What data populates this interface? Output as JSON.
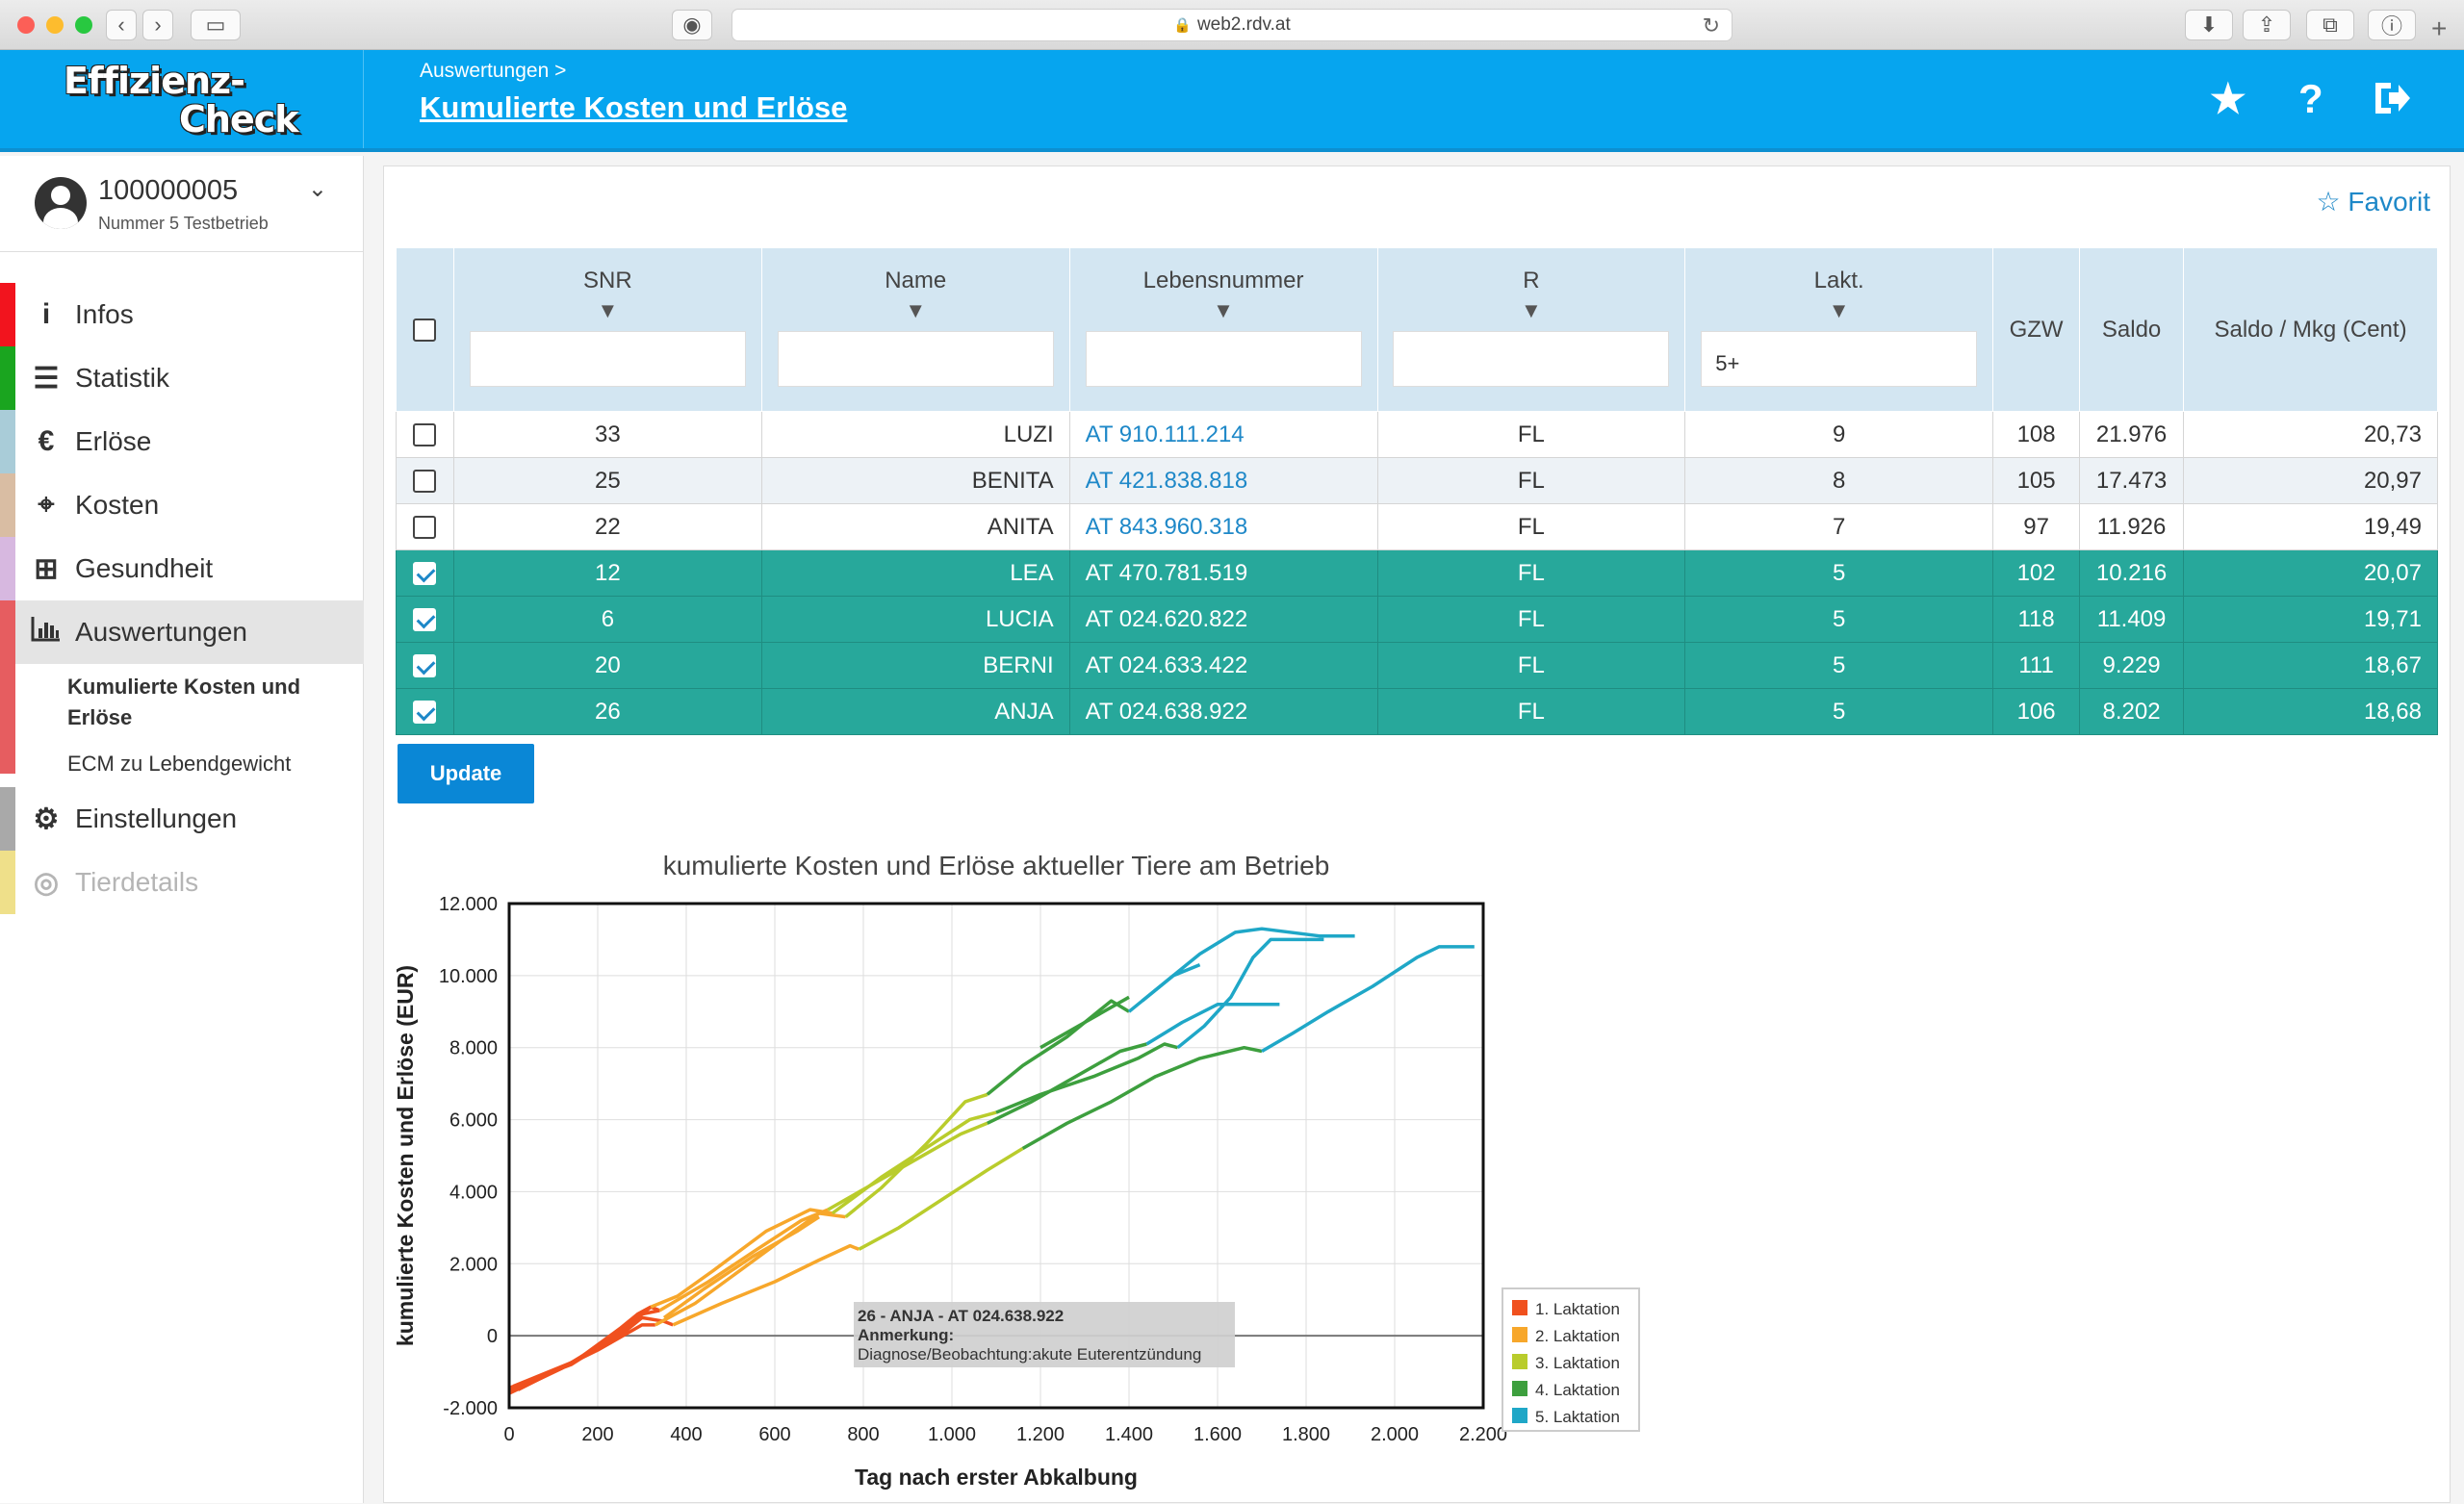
{
  "browser": {
    "url": "web2.rdv.at"
  },
  "header": {
    "logo_line1": "Effizienz-",
    "logo_line2": "Check",
    "breadcrumb": "Auswertungen >",
    "title": "Kumulierte Kosten und Erlöse",
    "icons": [
      "star-icon",
      "help-icon",
      "logout-icon"
    ]
  },
  "user": {
    "id": "100000005",
    "name": "Nummer 5 Testbetrieb"
  },
  "sidebar": {
    "items": [
      {
        "label": "Infos",
        "icon": "info-icon",
        "color": "#f2141e"
      },
      {
        "label": "Statistik",
        "icon": "list-icon",
        "color": "#1aa51f"
      },
      {
        "label": "Erlöse",
        "icon": "euro-icon",
        "color": "#a9ccd8"
      },
      {
        "label": "Kosten",
        "icon": "crosshair-icon",
        "color": "#d9bda3"
      },
      {
        "label": "Gesundheit",
        "icon": "plus-icon",
        "color": "#d7b8e0"
      },
      {
        "label": "Auswertungen",
        "icon": "bar-chart-icon",
        "color": "#e65d60"
      },
      {
        "label": "Einstellungen",
        "icon": "gears-icon",
        "color": "#a9a9a9"
      },
      {
        "label": "Tierdetails",
        "icon": "target-icon",
        "color": "#efe08a"
      }
    ],
    "subitems": [
      "Kumulierte Kosten und Erlöse",
      "ECM zu Lebendgewicht"
    ]
  },
  "favorit_label": "Favorit",
  "table": {
    "headers": {
      "snr": "SNR",
      "name": "Name",
      "lebensnummer": "Lebensnummer",
      "r": "R",
      "lakt": "Lakt.",
      "gzw": "GZW",
      "saldo": "Saldo",
      "saldo_mkg": "Saldo / Mkg (Cent)"
    },
    "filters": {
      "snr": "",
      "name": "",
      "lebensnummer": "",
      "r": "",
      "lakt": "5+"
    },
    "rows": [
      {
        "snr": "33",
        "name": "LUZI",
        "lebensnummer": "AT 910.111.214",
        "r": "FL",
        "lakt": "9",
        "gzw": "108",
        "saldo": "21.976",
        "saldo_mkg": "20,73",
        "selected": false
      },
      {
        "snr": "25",
        "name": "BENITA",
        "lebensnummer": "AT 421.838.818",
        "r": "FL",
        "lakt": "8",
        "gzw": "105",
        "saldo": "17.473",
        "saldo_mkg": "20,97",
        "selected": false
      },
      {
        "snr": "22",
        "name": "ANITA",
        "lebensnummer": "AT 843.960.318",
        "r": "FL",
        "lakt": "7",
        "gzw": "97",
        "saldo": "11.926",
        "saldo_mkg": "19,49",
        "selected": false
      },
      {
        "snr": "12",
        "name": "LEA",
        "lebensnummer": "AT 470.781.519",
        "r": "FL",
        "lakt": "5",
        "gzw": "102",
        "saldo": "10.216",
        "saldo_mkg": "20,07",
        "selected": true
      },
      {
        "snr": "6",
        "name": "LUCIA",
        "lebensnummer": "AT 024.620.822",
        "r": "FL",
        "lakt": "5",
        "gzw": "118",
        "saldo": "11.409",
        "saldo_mkg": "19,71",
        "selected": true
      },
      {
        "snr": "20",
        "name": "BERNI",
        "lebensnummer": "AT 024.633.422",
        "r": "FL",
        "lakt": "5",
        "gzw": "111",
        "saldo": "9.229",
        "saldo_mkg": "18,67",
        "selected": true
      },
      {
        "snr": "26",
        "name": "ANJA",
        "lebensnummer": "AT 024.638.922",
        "r": "FL",
        "lakt": "5",
        "gzw": "106",
        "saldo": "8.202",
        "saldo_mkg": "18,68",
        "selected": true
      }
    ]
  },
  "update_label": "Update",
  "chart_data": {
    "type": "line",
    "title": "kumulierte Kosten und Erlöse aktueller Tiere am Betrieb",
    "xlabel": "Tag nach erster Abkalbung",
    "ylabel": "kumulierte Kosten und Erlöse (EUR)",
    "xlim": [
      0,
      2200
    ],
    "ylim": [
      -2000,
      12000
    ],
    "x_ticks": [
      "0",
      "200",
      "400",
      "600",
      "800",
      "1.000",
      "1.200",
      "1.400",
      "1.600",
      "1.800",
      "2.000",
      "2.200"
    ],
    "y_ticks": [
      "-2.000",
      "0",
      "2.000",
      "4.000",
      "6.000",
      "8.000",
      "10.000",
      "12.000"
    ],
    "grid": true,
    "legend_position": "right",
    "series": [
      {
        "name": "1. Laktation",
        "color": "#f0501e",
        "lines": [
          [
            [
              0,
              -1500
            ],
            [
              100,
              -1000
            ],
            [
              200,
              -400
            ],
            [
              300,
              300
            ],
            [
              330,
              300
            ]
          ],
          [
            [
              0,
              -1600
            ],
            [
              120,
              -900
            ],
            [
              240,
              0
            ],
            [
              300,
              600
            ],
            [
              340,
              700
            ]
          ],
          [
            [
              10,
              -1400
            ],
            [
              150,
              -700
            ],
            [
              250,
              200
            ],
            [
              290,
              600
            ],
            [
              320,
              800
            ],
            [
              340,
              700
            ]
          ],
          [
            [
              20,
              -1500
            ],
            [
              180,
              -500
            ],
            [
              260,
              100
            ],
            [
              300,
              500
            ],
            [
              350,
              400
            ],
            [
              370,
              300
            ]
          ],
          [
            [
              0,
              -1450
            ],
            [
              140,
              -800
            ],
            [
              230,
              -100
            ],
            [
              280,
              400
            ],
            [
              310,
              700
            ],
            [
              320,
              800
            ]
          ]
        ]
      },
      {
        "name": "2. Laktation",
        "color": "#f7a72b",
        "lines": [
          [
            [
              330,
              300
            ],
            [
              420,
              900
            ],
            [
              520,
              1800
            ],
            [
              620,
              2700
            ],
            [
              700,
              3400
            ],
            [
              760,
              3300
            ]
          ],
          [
            [
              340,
              700
            ],
            [
              450,
              1500
            ],
            [
              560,
              2400
            ],
            [
              660,
              3200
            ],
            [
              720,
              3500
            ]
          ],
          [
            [
              320,
              800
            ],
            [
              380,
              1100
            ],
            [
              460,
              1800
            ],
            [
              580,
              2900
            ],
            [
              680,
              3500
            ],
            [
              730,
              3400
            ]
          ],
          [
            [
              370,
              300
            ],
            [
              480,
              900
            ],
            [
              600,
              1500
            ],
            [
              700,
              2100
            ],
            [
              770,
              2500
            ],
            [
              790,
              2400
            ]
          ],
          [
            [
              350,
              500
            ],
            [
              440,
              1300
            ],
            [
              550,
              2200
            ],
            [
              650,
              2900
            ],
            [
              700,
              3300
            ]
          ]
        ]
      },
      {
        "name": "3. Laktation",
        "color": "#b9cc2c",
        "lines": [
          [
            [
              760,
              3300
            ],
            [
              840,
              4100
            ],
            [
              940,
              5300
            ],
            [
              1030,
              6500
            ],
            [
              1080,
              6700
            ]
          ],
          [
            [
              720,
              3500
            ],
            [
              820,
              4200
            ],
            [
              920,
              4900
            ],
            [
              1020,
              5600
            ],
            [
              1080,
              5900
            ]
          ],
          [
            [
              790,
              2400
            ],
            [
              880,
              3000
            ],
            [
              980,
              3800
            ],
            [
              1080,
              4600
            ],
            [
              1160,
              5200
            ]
          ],
          [
            [
              730,
              3400
            ],
            [
              840,
              4400
            ],
            [
              940,
              5200
            ],
            [
              1040,
              6000
            ],
            [
              1100,
              6200
            ]
          ]
        ]
      },
      {
        "name": "4. Laktation",
        "color": "#3d9f3e",
        "lines": [
          [
            [
              1080,
              6700
            ],
            [
              1160,
              7500
            ],
            [
              1260,
              8300
            ],
            [
              1320,
              8900
            ],
            [
              1360,
              9300
            ],
            [
              1400,
              9000
            ]
          ],
          [
            [
              1100,
              6200
            ],
            [
              1200,
              6700
            ],
            [
              1320,
              7200
            ],
            [
              1420,
              7700
            ],
            [
              1480,
              8100
            ],
            [
              1510,
              8000
            ]
          ],
          [
            [
              1160,
              5200
            ],
            [
              1260,
              5900
            ],
            [
              1360,
              6500
            ],
            [
              1460,
              7200
            ],
            [
              1560,
              7700
            ],
            [
              1660,
              8000
            ],
            [
              1700,
              7900
            ]
          ],
          [
            [
              1080,
              5900
            ],
            [
              1180,
              6500
            ],
            [
              1280,
              7200
            ],
            [
              1380,
              7900
            ],
            [
              1440,
              8100
            ]
          ],
          [
            [
              1200,
              8000
            ],
            [
              1300,
              8700
            ],
            [
              1400,
              9400
            ]
          ]
        ]
      },
      {
        "name": "5. Laktation",
        "color": "#1fa7c7",
        "lines": [
          [
            [
              1400,
              9000
            ],
            [
              1480,
              9800
            ],
            [
              1560,
              10600
            ],
            [
              1640,
              11200
            ],
            [
              1700,
              11300
            ],
            [
              1830,
              11100
            ],
            [
              1910,
              11100
            ]
          ],
          [
            [
              1510,
              8000
            ],
            [
              1570,
              8600
            ],
            [
              1630,
              9400
            ],
            [
              1680,
              10500
            ],
            [
              1720,
              11000
            ],
            [
              1840,
              11000
            ]
          ],
          [
            [
              1700,
              7900
            ],
            [
              1770,
              8400
            ],
            [
              1850,
              9000
            ],
            [
              1950,
              9700
            ],
            [
              2050,
              10500
            ],
            [
              2100,
              10800
            ],
            [
              2180,
              10800
            ]
          ],
          [
            [
              1440,
              8100
            ],
            [
              1520,
              8700
            ],
            [
              1600,
              9200
            ],
            [
              1700,
              9200
            ],
            [
              1740,
              9200
            ]
          ],
          [
            [
              1430,
              9300
            ],
            [
              1500,
              10000
            ],
            [
              1560,
              10300
            ]
          ]
        ]
      }
    ],
    "tooltip": {
      "line1": "26 - ANJA - AT 024.638.922",
      "line2": "Anmerkung:",
      "line3": "Diagnose/Beobachtung:akute Euterentzündung"
    }
  }
}
